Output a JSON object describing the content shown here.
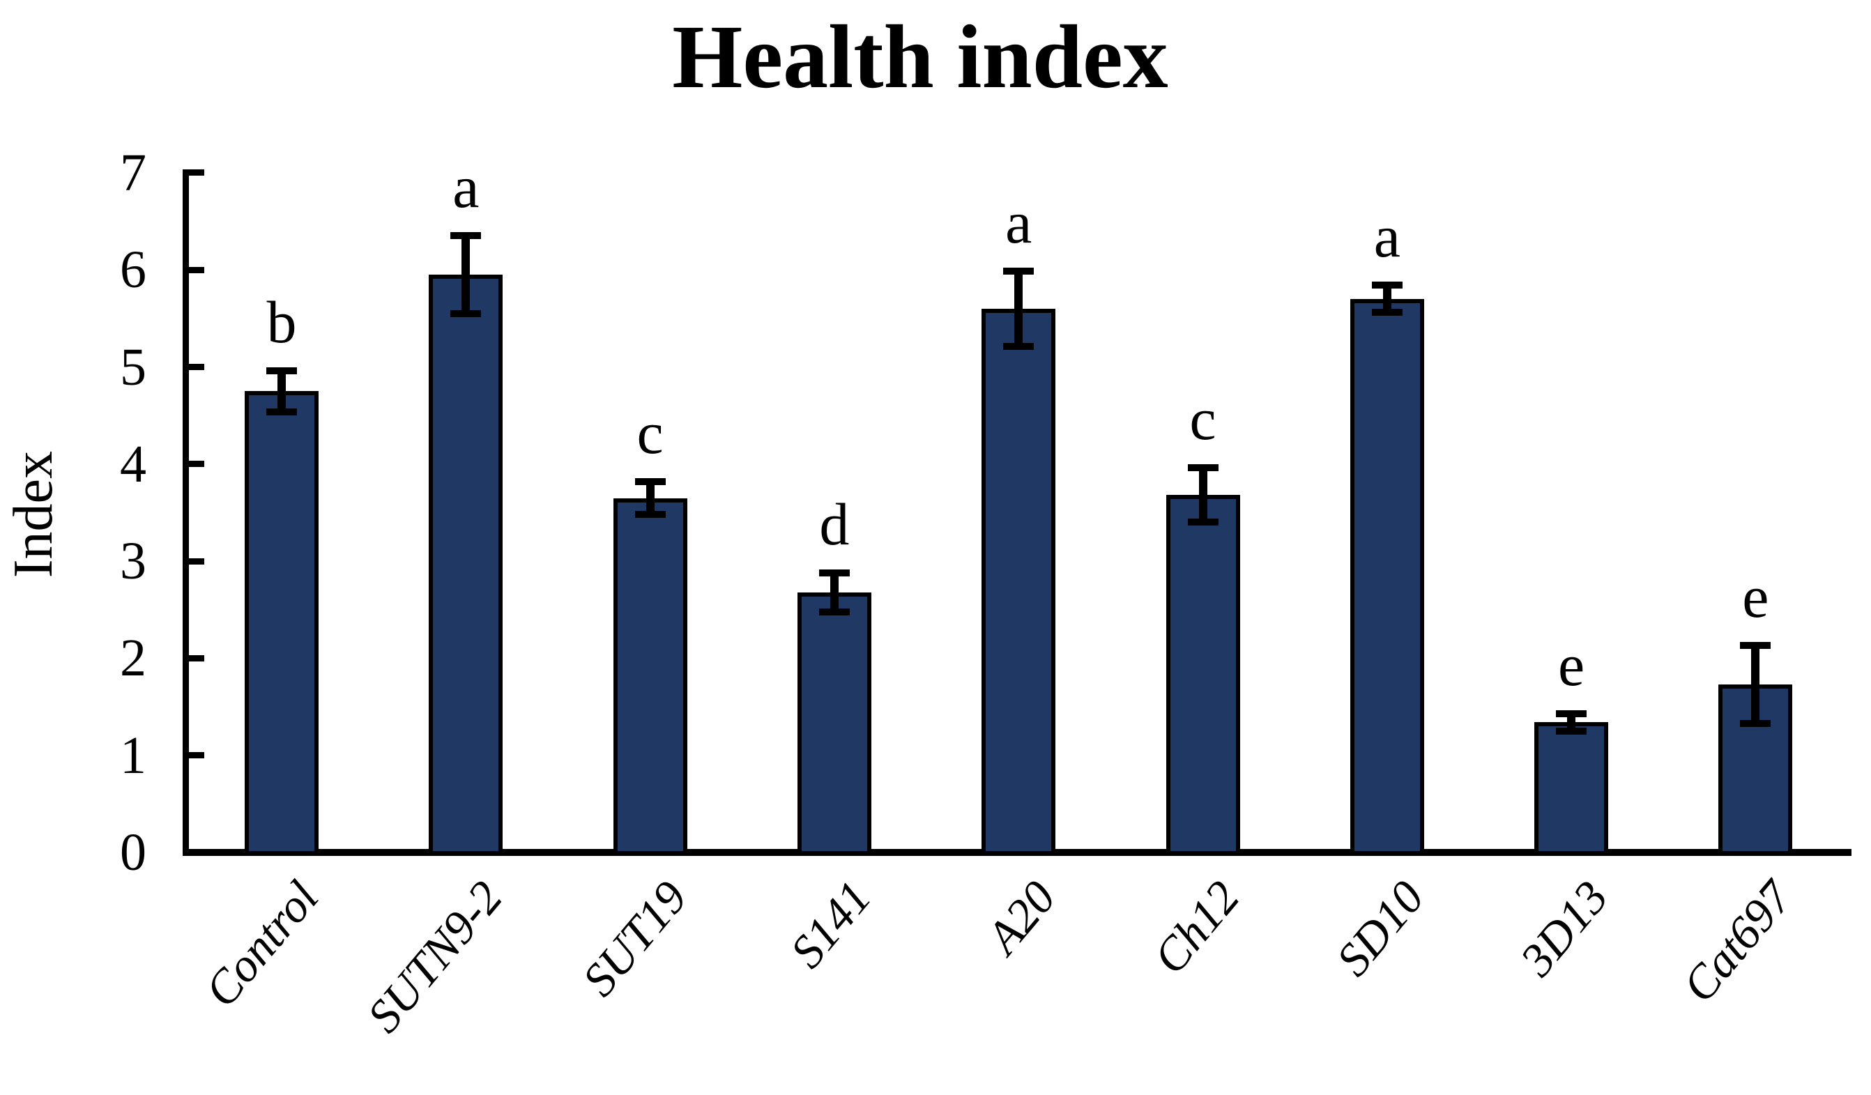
{
  "page": {
    "background": "#ffffff"
  },
  "chart_data": {
    "type": "bar",
    "title": "Health index",
    "ylabel": "Index",
    "xlabel": "",
    "ylim": [
      0,
      7
    ],
    "yticks": [
      0,
      1,
      2,
      3,
      4,
      5,
      6,
      7
    ],
    "grid": false,
    "legend": null,
    "bar_color": "#203864",
    "bar_border_color": "#000000",
    "axis_color": "#000000",
    "categories": [
      "Control",
      "SUTN9-2",
      "SUT19",
      "S141",
      "A20",
      "Ch12",
      "SD10",
      "3D13",
      "Cat697"
    ],
    "values": [
      4.75,
      5.95,
      3.65,
      2.68,
      5.6,
      3.68,
      5.7,
      1.34,
      1.73
    ],
    "errors": [
      0.21,
      0.4,
      0.17,
      0.2,
      0.39,
      0.28,
      0.14,
      0.09,
      0.4
    ],
    "sig_letters": [
      "b",
      "a",
      "c",
      "d",
      "a",
      "c",
      "a",
      "e",
      "e"
    ]
  }
}
